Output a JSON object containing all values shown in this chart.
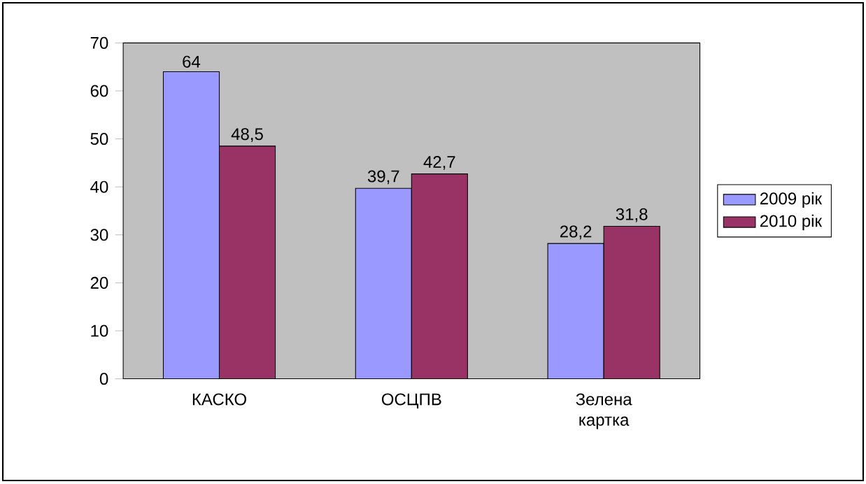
{
  "chart_data": {
    "type": "bar",
    "categories": [
      "КАСКО",
      "ОСЦПВ",
      "Зелена картка"
    ],
    "series": [
      {
        "name": "2009 рік",
        "color": "#9999ff",
        "values": [
          64,
          39.7,
          28.2
        ],
        "value_labels": [
          "64",
          "39,7",
          "28,2"
        ]
      },
      {
        "name": "2010 рік",
        "color": "#993366",
        "values": [
          48.5,
          42.7,
          31.8
        ],
        "value_labels": [
          "48,5",
          "42,7",
          "31,8"
        ]
      }
    ],
    "ylim": [
      0,
      70
    ],
    "yticks": [
      0,
      10,
      20,
      30,
      40,
      50,
      60,
      70
    ],
    "grid": false,
    "legend": "right"
  }
}
